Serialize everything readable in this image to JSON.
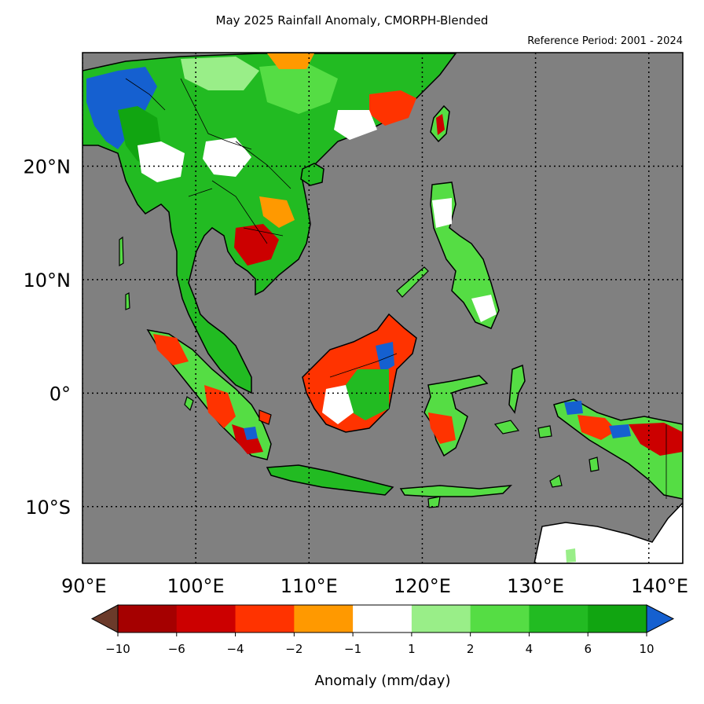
{
  "title": "May 2025 Rainfall Anomaly, CMORPH-Blended",
  "subtitle": "Reference Period: 2001 - 2024",
  "map": {
    "lon_range": [
      90,
      143
    ],
    "lat_range": [
      -15,
      30
    ],
    "lon_ticks": [
      {
        "value": 90,
        "label": "90°E"
      },
      {
        "value": 100,
        "label": "100°E"
      },
      {
        "value": 110,
        "label": "110°E"
      },
      {
        "value": 120,
        "label": "120°E"
      },
      {
        "value": 130,
        "label": "130°E"
      },
      {
        "value": 140,
        "label": "140°E"
      }
    ],
    "lat_ticks": [
      {
        "value": 20,
        "label": "20°N"
      },
      {
        "value": 10,
        "label": "10°N"
      },
      {
        "value": 0,
        "label": "0°"
      },
      {
        "value": -10,
        "label": "10°S"
      }
    ],
    "ocean_color": "#808080",
    "gridlines": "dotted"
  },
  "colorbar": {
    "title": "Anomaly (mm/day)",
    "under_color": "#6b3a2a",
    "over_color": "#1560d0",
    "bins": [
      {
        "color": "#a50000"
      },
      {
        "color": "#cc0000"
      },
      {
        "color": "#ff3300"
      },
      {
        "color": "#ff9900"
      },
      {
        "color": "#ffffff"
      },
      {
        "color": "#99ee88"
      },
      {
        "color": "#55dd44"
      },
      {
        "color": "#22bb22"
      },
      {
        "color": "#11a511"
      }
    ],
    "tick_labels": [
      "−10",
      "−6",
      "−4",
      "−2",
      "−1",
      "1",
      "2",
      "4",
      "6",
      "10"
    ]
  }
}
